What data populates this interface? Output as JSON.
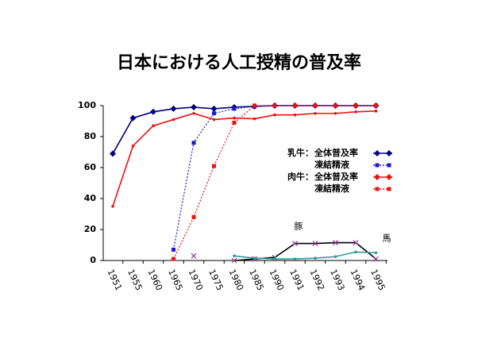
{
  "chart_data": {
    "type": "line",
    "title": "日本における人工授精の普及率",
    "categories": [
      "1951",
      "1955",
      "1960",
      "1965",
      "1970",
      "1975",
      "1980",
      "1985",
      "1990",
      "1991",
      "1992",
      "1993",
      "1994",
      "1995"
    ],
    "ylim": [
      0,
      100
    ],
    "yticks": [
      0,
      20,
      40,
      60,
      80,
      100
    ],
    "legend_groups": [
      "乳牛：",
      "肉牛："
    ],
    "series": [
      {
        "name": "全体普及率",
        "group": 0,
        "color": "#000080",
        "dash": false,
        "marker": "diamond",
        "values": [
          69,
          92,
          96,
          98,
          99,
          98,
          99,
          99.5,
          100,
          100,
          100,
          100,
          100,
          100
        ]
      },
      {
        "name": "凍結精液",
        "group": 0,
        "color": "#1a1ad0",
        "dash": true,
        "marker": "square",
        "values": [
          null,
          null,
          null,
          7,
          76,
          95,
          98,
          99.5,
          100,
          100,
          100,
          100,
          100,
          100
        ]
      },
      {
        "name": "全体普及率",
        "group": 1,
        "color": "#ee1111",
        "dash": false,
        "marker": "dot",
        "values": [
          35,
          74,
          87,
          91,
          95,
          91,
          92,
          91.5,
          94,
          94,
          95,
          95,
          96,
          96.5
        ]
      },
      {
        "name": "凍結精液",
        "group": 1,
        "color": "#ee1111",
        "dash": true,
        "marker": "square",
        "values": [
          null,
          null,
          null,
          1,
          28,
          61,
          89,
          100,
          100,
          100,
          100,
          100,
          100,
          100
        ]
      },
      {
        "name": "豚",
        "color": "#000000",
        "marker_color": "#993399",
        "dash": false,
        "marker": "x",
        "values": [
          null,
          null,
          null,
          null,
          3,
          null,
          0,
          1,
          2,
          11,
          11,
          11.5,
          11.5,
          1
        ]
      },
      {
        "name": "馬",
        "color": "#339999",
        "dash": false,
        "marker": "dot",
        "values": [
          null,
          null,
          null,
          null,
          null,
          null,
          3,
          1.5,
          1,
          1,
          1.5,
          2.5,
          5.5,
          5
        ]
      }
    ]
  }
}
